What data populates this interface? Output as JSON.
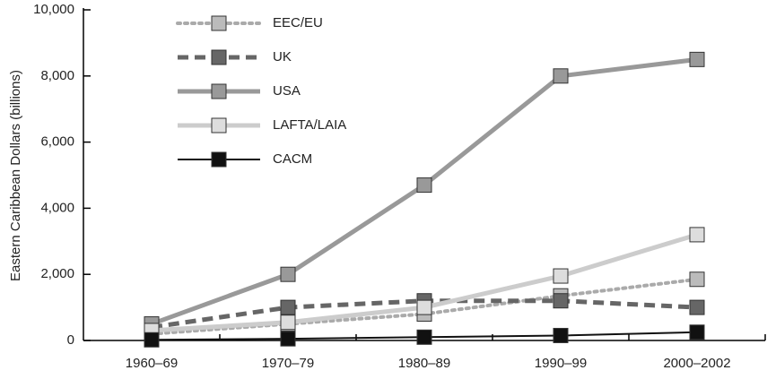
{
  "chart_data": {
    "type": "line",
    "y_label": "Eastern Caribbean Dollars (billions)",
    "categories": [
      "1960–69",
      "1970–79",
      "1980–89",
      "1990–99",
      "2000–2002"
    ],
    "series": [
      {
        "name": "EEC/EU",
        "color": "#aaaaaa",
        "marker_color": "#bbbbbb",
        "line_style": "dotted",
        "values": [
          200,
          500,
          800,
          1350,
          1850
        ]
      },
      {
        "name": "UK",
        "color": "#666666",
        "marker_color": "#666666",
        "line_style": "dashed",
        "values": [
          400,
          1000,
          1200,
          1200,
          1000
        ]
      },
      {
        "name": "USA",
        "color": "#999999",
        "marker_color": "#999999",
        "line_style": "solid",
        "values": [
          500,
          2000,
          4700,
          8000,
          8500
        ]
      },
      {
        "name": "LAFTA/LAIA",
        "color": "#cccccc",
        "marker_color": "#dddddd",
        "line_style": "solid",
        "values": [
          300,
          550,
          1000,
          1950,
          3200
        ]
      },
      {
        "name": "CACM",
        "color": "#111111",
        "marker_color": "#111111",
        "line_style": "thin",
        "values": [
          20,
          50,
          100,
          150,
          250
        ]
      }
    ],
    "ylim": [
      0,
      10000
    ],
    "yticks": [
      0,
      {
        "value": 2000,
        "label": "2,000"
      },
      {
        "value": 4000,
        "label": "4,000"
      },
      {
        "value": 6000,
        "label": "6,000"
      },
      {
        "value": 8000,
        "label": "8,000"
      },
      {
        "value": 10000,
        "label": "10,000"
      }
    ],
    "legend": "top-left",
    "grid": false
  }
}
